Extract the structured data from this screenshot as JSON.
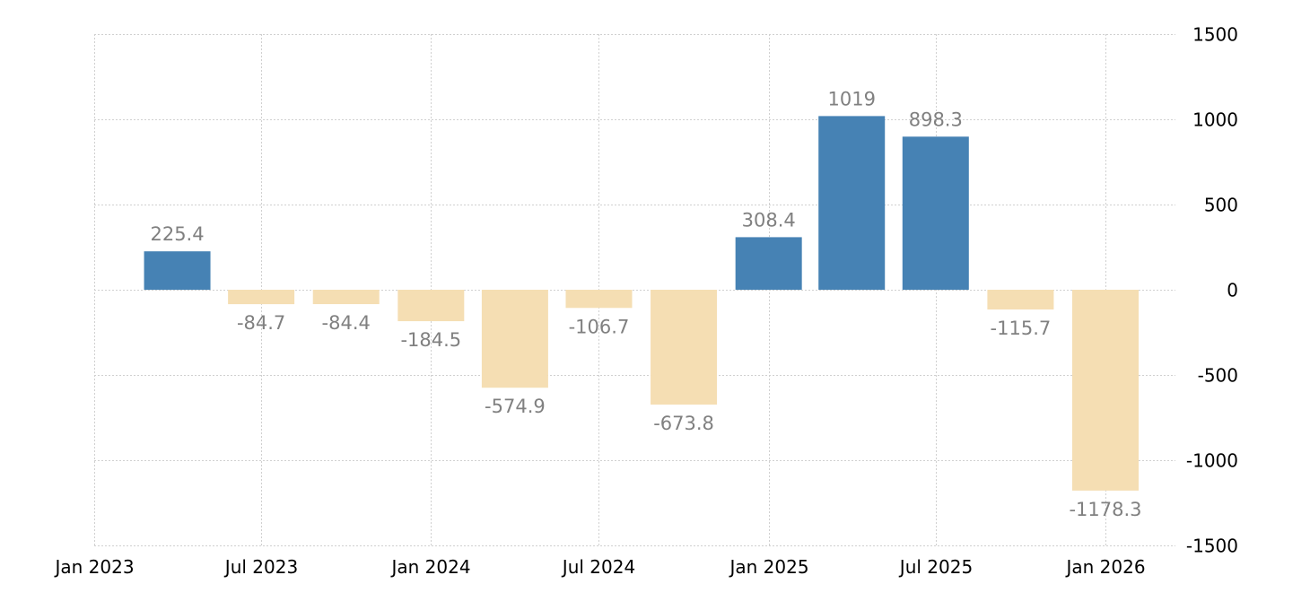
{
  "chart_data": {
    "type": "bar",
    "title": "",
    "xlabel": "",
    "ylabel": "",
    "categories": [
      "2023-04-01",
      "2023-07-01",
      "2023-10-01",
      "2024-01-01",
      "2024-04-01",
      "2024-07-01",
      "2024-10-01",
      "2025-01-01",
      "2025-04-01",
      "2025-07-01",
      "2025-10-01",
      "2026-01-01"
    ],
    "values": [
      225.4,
      -84.7,
      -84.4,
      -184.5,
      -574.9,
      -106.7,
      -673.8,
      308.4,
      1019,
      898.3,
      -115.7,
      -1178.3
    ],
    "data_labels": [
      "225.4",
      "-84.7",
      "-84.4",
      "-184.5",
      "-574.9",
      "-106.7",
      "-673.8",
      "308.4",
      "1019",
      "898.3",
      "-115.7",
      "-1178.3"
    ],
    "ylim": [
      -1500,
      1500
    ],
    "y_ticks": [
      1500,
      1000,
      500,
      0,
      -500,
      -1000,
      -1500
    ],
    "y_tick_labels": [
      "1500",
      "1000",
      "500",
      "0",
      "-500",
      "-1000",
      "-1500"
    ],
    "x_ticks": [
      "2023-01-01",
      "2023-07-01",
      "2024-01-01",
      "2024-07-01",
      "2025-01-01",
      "2025-07-01",
      "2026-01-01"
    ],
    "x_tick_labels": [
      "Jan 2023",
      "Jul 2023",
      "Jan 2024",
      "Jul 2024",
      "Jan 2025",
      "Jul 2025",
      "Jan 2026"
    ],
    "y_axis_position": "right",
    "grid": true,
    "colors": {
      "positive": "#4682b4",
      "negative": "#f5deb3",
      "label": "#808080"
    }
  }
}
